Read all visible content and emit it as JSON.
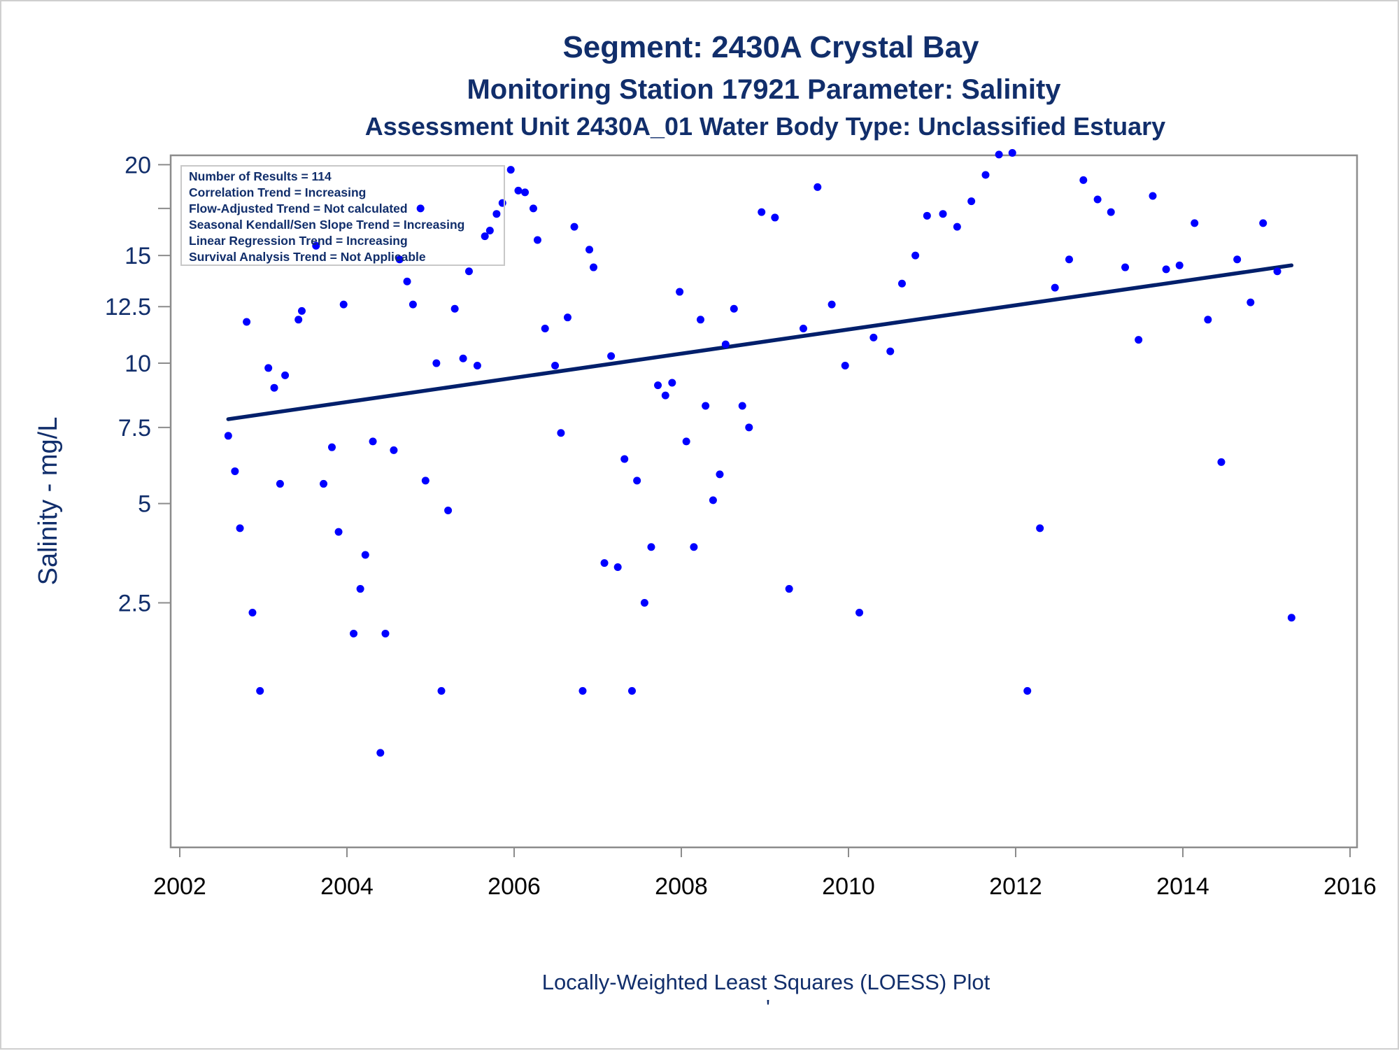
{
  "chart_data": {
    "type": "scatter",
    "title": "Segment: 2430A  Crystal Bay",
    "subtitle": "Monitoring Station 17921 Parameter: Salinity",
    "subtitle2": "Assessment Unit 2430A_01   Water Body Type: Unclassified Estuary",
    "ylabel": "Salinity - mg/L",
    "xlabel": "",
    "footnote": "Locally-Weighted Least Squares (LOESS) Plot",
    "footnote_mark": "'",
    "x_ticks": [
      "2002",
      "2004",
      "2006",
      "2008",
      "2010",
      "2012",
      "2014",
      "2016"
    ],
    "y_ticks": [
      "2.5",
      "5",
      "7.5",
      "10",
      "12.5",
      "15",
      "20"
    ],
    "xlim": [
      2002,
      2016
    ],
    "ylim": [
      0.4,
      22
    ],
    "y_scale": "nonlinear (compressed, roughly square-root)",
    "grid": false,
    "legend_placement": "top-left",
    "point_color": "#0000ff",
    "line_color": "#001f6b",
    "stats_box": [
      "Number of Results = 114",
      "Correlation Trend = Increasing",
      "Flow-Adjusted Trend = Not calculated",
      "Seasonal Kendall/Sen Slope Trend = Increasing",
      "Linear Regression Trend = Increasing",
      "Survival Analysis Trend = Not Applicable"
    ],
    "series": [
      {
        "type": "scatter",
        "points": [
          [
            2002.58,
            7.2
          ],
          [
            2002.66,
            6.0
          ],
          [
            2002.72,
            4.3
          ],
          [
            2002.8,
            11.8
          ],
          [
            2002.87,
            2.3
          ],
          [
            2002.96,
            1.0
          ],
          [
            2003.06,
            9.8
          ],
          [
            2003.13,
            9.0
          ],
          [
            2003.2,
            5.6
          ],
          [
            2003.26,
            9.5
          ],
          [
            2003.42,
            11.9
          ],
          [
            2003.46,
            12.3
          ],
          [
            2003.63,
            15.5
          ],
          [
            2003.72,
            5.6
          ],
          [
            2003.82,
            6.8
          ],
          [
            2003.9,
            4.2
          ],
          [
            2003.96,
            12.6
          ],
          [
            2004.08,
            1.9
          ],
          [
            2004.16,
            2.8
          ],
          [
            2004.22,
            3.6
          ],
          [
            2004.31,
            7.0
          ],
          [
            2004.4,
            0.35
          ],
          [
            2004.46,
            1.9
          ],
          [
            2004.56,
            6.7
          ],
          [
            2004.63,
            14.8
          ],
          [
            2004.72,
            13.7
          ],
          [
            2004.79,
            12.6
          ],
          [
            2004.88,
            17.5
          ],
          [
            2004.94,
            5.7
          ],
          [
            2005.07,
            10.0
          ],
          [
            2005.13,
            1.0
          ],
          [
            2005.21,
            4.8
          ],
          [
            2005.29,
            12.4
          ],
          [
            2005.39,
            10.2
          ],
          [
            2005.46,
            14.2
          ],
          [
            2005.56,
            9.9
          ],
          [
            2005.65,
            16.0
          ],
          [
            2005.71,
            16.3
          ],
          [
            2005.79,
            17.2
          ],
          [
            2005.86,
            17.8
          ],
          [
            2005.96,
            19.7
          ],
          [
            2006.05,
            18.5
          ],
          [
            2006.13,
            18.4
          ],
          [
            2006.23,
            17.5
          ],
          [
            2006.28,
            15.8
          ],
          [
            2006.37,
            11.5
          ],
          [
            2006.49,
            9.9
          ],
          [
            2006.56,
            7.3
          ],
          [
            2006.64,
            12.0
          ],
          [
            2006.72,
            16.5
          ],
          [
            2006.82,
            1.0
          ],
          [
            2006.9,
            15.3
          ],
          [
            2006.95,
            14.4
          ],
          [
            2007.08,
            3.4
          ],
          [
            2007.16,
            10.3
          ],
          [
            2007.24,
            3.3
          ],
          [
            2007.32,
            6.4
          ],
          [
            2007.41,
            1.0
          ],
          [
            2007.47,
            5.7
          ],
          [
            2007.56,
            2.5
          ],
          [
            2007.64,
            3.8
          ],
          [
            2007.72,
            9.1
          ],
          [
            2007.81,
            8.7
          ],
          [
            2007.89,
            9.2
          ],
          [
            2007.98,
            13.2
          ],
          [
            2008.06,
            7.0
          ],
          [
            2008.15,
            3.8
          ],
          [
            2008.23,
            11.9
          ],
          [
            2008.29,
            8.3
          ],
          [
            2008.38,
            5.1
          ],
          [
            2008.46,
            5.9
          ],
          [
            2008.53,
            10.8
          ],
          [
            2008.63,
            12.4
          ],
          [
            2008.73,
            8.3
          ],
          [
            2008.81,
            7.5
          ],
          [
            2008.96,
            17.3
          ],
          [
            2009.12,
            17.0
          ],
          [
            2009.29,
            2.8
          ],
          [
            2009.46,
            11.5
          ],
          [
            2009.63,
            18.7
          ],
          [
            2009.8,
            12.6
          ],
          [
            2009.96,
            9.9
          ],
          [
            2010.13,
            2.3
          ],
          [
            2010.3,
            11.1
          ],
          [
            2010.5,
            10.5
          ],
          [
            2010.64,
            13.6
          ],
          [
            2010.8,
            15.0
          ],
          [
            2010.94,
            17.1
          ],
          [
            2011.13,
            17.2
          ],
          [
            2011.3,
            16.5
          ],
          [
            2011.47,
            17.9
          ],
          [
            2011.64,
            19.4
          ],
          [
            2011.8,
            20.6
          ],
          [
            2011.96,
            20.7
          ],
          [
            2012.14,
            1.0
          ],
          [
            2012.29,
            4.3
          ],
          [
            2012.47,
            13.4
          ],
          [
            2012.64,
            14.8
          ],
          [
            2012.81,
            19.1
          ],
          [
            2012.98,
            18.0
          ],
          [
            2013.14,
            17.3
          ],
          [
            2013.31,
            14.4
          ],
          [
            2013.47,
            11.0
          ],
          [
            2013.64,
            18.2
          ],
          [
            2013.8,
            14.3
          ],
          [
            2013.96,
            14.5
          ],
          [
            2014.14,
            16.7
          ],
          [
            2014.3,
            11.9
          ],
          [
            2014.46,
            6.3
          ],
          [
            2014.65,
            14.8
          ],
          [
            2014.81,
            12.7
          ],
          [
            2014.96,
            16.7
          ],
          [
            2015.13,
            14.2
          ],
          [
            2015.3,
            2.2
          ]
        ]
      },
      {
        "type": "line",
        "points": [
          [
            2002.58,
            7.8
          ],
          [
            2015.3,
            14.5
          ]
        ]
      }
    ]
  }
}
